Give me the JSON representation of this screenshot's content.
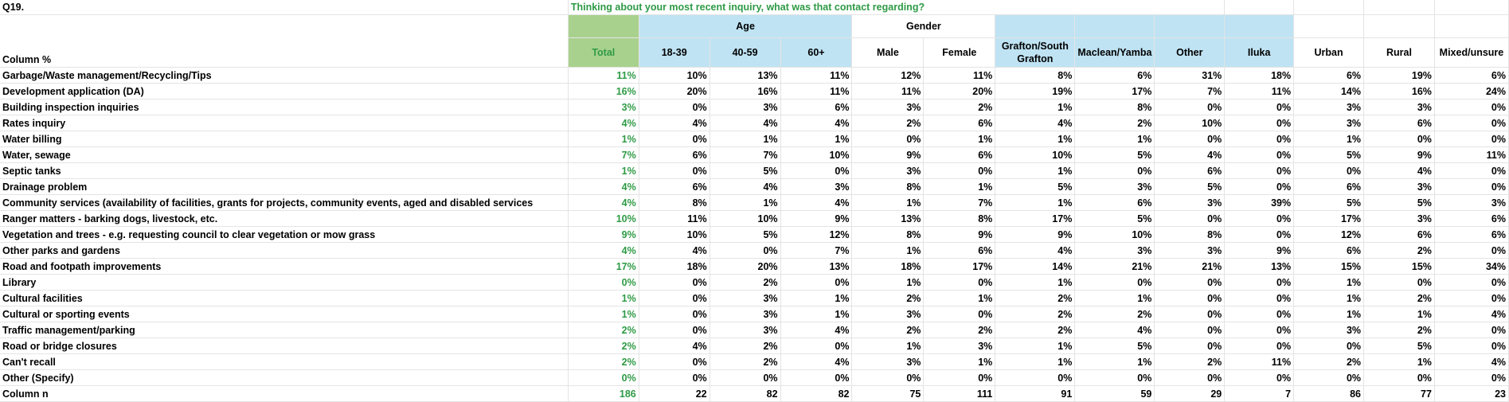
{
  "title": "Q19.",
  "question": "Thinking about your most recent inquiry, what was that contact regarding?",
  "row_header_label": "Column %",
  "groups": {
    "age": "Age",
    "gender": "Gender"
  },
  "columns": [
    "Total",
    "18-39",
    "40-59",
    "60+",
    "Male",
    "Female",
    "Grafton/South Grafton",
    "Maclean/Yamba",
    "Other",
    "Iluka",
    "Urban",
    "Rural",
    "Mixed/unsure"
  ],
  "rows": [
    {
      "label": "Garbage/Waste management/Recycling/Tips",
      "values": [
        "11%",
        "10%",
        "13%",
        "11%",
        "12%",
        "11%",
        "8%",
        "6%",
        "31%",
        "18%",
        "6%",
        "19%",
        "6%"
      ]
    },
    {
      "label": "Development application (DA)",
      "values": [
        "16%",
        "20%",
        "16%",
        "11%",
        "11%",
        "20%",
        "19%",
        "17%",
        "7%",
        "11%",
        "14%",
        "16%",
        "24%"
      ]
    },
    {
      "label": "Building inspection inquiries",
      "values": [
        "3%",
        "0%",
        "3%",
        "6%",
        "3%",
        "2%",
        "1%",
        "8%",
        "0%",
        "0%",
        "3%",
        "3%",
        "0%"
      ]
    },
    {
      "label": "Rates inquiry",
      "values": [
        "4%",
        "4%",
        "4%",
        "4%",
        "2%",
        "6%",
        "4%",
        "2%",
        "10%",
        "0%",
        "3%",
        "6%",
        "0%"
      ]
    },
    {
      "label": "Water billing",
      "values": [
        "1%",
        "0%",
        "1%",
        "1%",
        "0%",
        "1%",
        "1%",
        "1%",
        "0%",
        "0%",
        "1%",
        "0%",
        "0%"
      ]
    },
    {
      "label": "Water, sewage",
      "values": [
        "7%",
        "6%",
        "7%",
        "10%",
        "9%",
        "6%",
        "10%",
        "5%",
        "4%",
        "0%",
        "5%",
        "9%",
        "11%"
      ]
    },
    {
      "label": "Septic tanks",
      "values": [
        "1%",
        "0%",
        "5%",
        "0%",
        "3%",
        "0%",
        "1%",
        "0%",
        "6%",
        "0%",
        "0%",
        "4%",
        "0%"
      ]
    },
    {
      "label": "Drainage problem",
      "values": [
        "4%",
        "6%",
        "4%",
        "3%",
        "8%",
        "1%",
        "5%",
        "3%",
        "5%",
        "0%",
        "6%",
        "3%",
        "0%"
      ]
    },
    {
      "label": "Community services (availability of facilities, grants for projects, community events, aged and disabled services",
      "values": [
        "4%",
        "8%",
        "1%",
        "4%",
        "1%",
        "7%",
        "1%",
        "6%",
        "3%",
        "39%",
        "5%",
        "5%",
        "3%"
      ]
    },
    {
      "label": "Ranger matters - barking dogs, livestock, etc.",
      "values": [
        "10%",
        "11%",
        "10%",
        "9%",
        "13%",
        "8%",
        "17%",
        "5%",
        "0%",
        "0%",
        "17%",
        "3%",
        "6%"
      ]
    },
    {
      "label": "Vegetation and trees - e.g. requesting council to clear vegetation or mow grass",
      "values": [
        "9%",
        "10%",
        "5%",
        "12%",
        "8%",
        "9%",
        "9%",
        "10%",
        "8%",
        "0%",
        "12%",
        "6%",
        "6%"
      ]
    },
    {
      "label": "Other parks and gardens",
      "values": [
        "4%",
        "4%",
        "0%",
        "7%",
        "1%",
        "6%",
        "4%",
        "3%",
        "3%",
        "9%",
        "6%",
        "2%",
        "0%"
      ]
    },
    {
      "label": "Road and footpath improvements",
      "values": [
        "17%",
        "18%",
        "20%",
        "13%",
        "18%",
        "17%",
        "14%",
        "21%",
        "21%",
        "13%",
        "15%",
        "15%",
        "34%"
      ]
    },
    {
      "label": "Library",
      "values": [
        "0%",
        "0%",
        "2%",
        "0%",
        "1%",
        "0%",
        "1%",
        "0%",
        "0%",
        "0%",
        "1%",
        "0%",
        "0%"
      ]
    },
    {
      "label": "Cultural facilities",
      "values": [
        "1%",
        "0%",
        "3%",
        "1%",
        "2%",
        "1%",
        "2%",
        "1%",
        "0%",
        "0%",
        "1%",
        "2%",
        "0%"
      ]
    },
    {
      "label": "Cultural or sporting events",
      "values": [
        "1%",
        "0%",
        "3%",
        "1%",
        "3%",
        "0%",
        "2%",
        "2%",
        "0%",
        "0%",
        "1%",
        "1%",
        "4%"
      ]
    },
    {
      "label": "Traffic management/parking",
      "values": [
        "2%",
        "0%",
        "3%",
        "4%",
        "2%",
        "2%",
        "2%",
        "4%",
        "0%",
        "0%",
        "3%",
        "2%",
        "0%"
      ]
    },
    {
      "label": "Road or bridge closures",
      "values": [
        "2%",
        "4%",
        "2%",
        "0%",
        "1%",
        "3%",
        "1%",
        "5%",
        "0%",
        "0%",
        "0%",
        "5%",
        "0%"
      ]
    },
    {
      "label": "Can't recall",
      "values": [
        "2%",
        "0%",
        "2%",
        "4%",
        "3%",
        "1%",
        "1%",
        "1%",
        "2%",
        "11%",
        "2%",
        "1%",
        "4%"
      ]
    },
    {
      "label": "Other (Specify)",
      "values": [
        "0%",
        "0%",
        "0%",
        "0%",
        "0%",
        "0%",
        "0%",
        "0%",
        "0%",
        "0%",
        "0%",
        "0%",
        "0%"
      ]
    },
    {
      "label": "Column n",
      "values": [
        "186",
        "22",
        "82",
        "82",
        "75",
        "111",
        "91",
        "59",
        "29",
        "7",
        "86",
        "77",
        "23"
      ]
    }
  ],
  "colors": {
    "total_header_bg": "#a9d18e",
    "group_header_bg": "#bfe3f3",
    "total_text": "#2e9a45",
    "question_text": "#2e9a45"
  }
}
